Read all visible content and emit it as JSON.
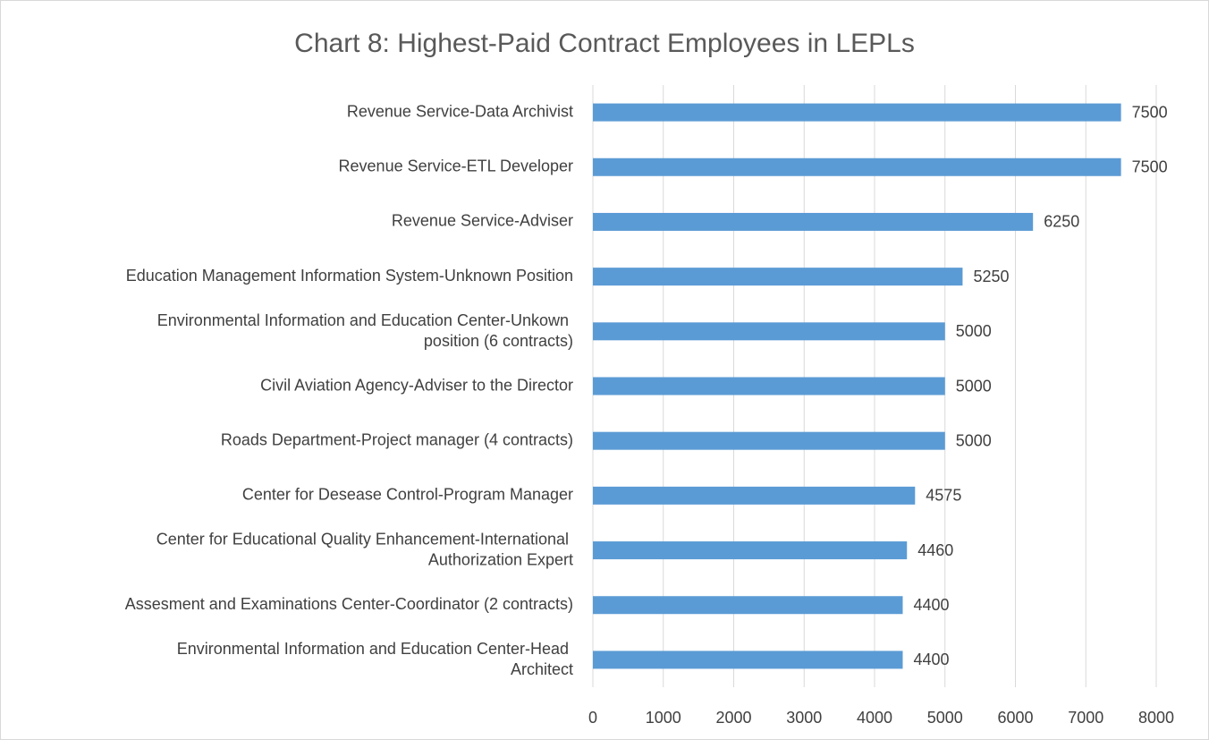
{
  "chart_data": {
    "type": "barh",
    "title": "Chart 8: Highest-Paid Contract Employees in LEPLs",
    "categories": [
      "Revenue Service-Data Archivist",
      "Revenue Service-ETL Developer",
      "Revenue Service-Adviser",
      "Education Management Information System-Unknown Position",
      "Environmental Information and Education Center-Unkown\nposition (6 contracts)",
      "Civil Aviation Agency-Adviser to the Director",
      "Roads Department-Project manager (4 contracts)",
      "Center for Desease Control-Program Manager",
      "Center for Educational Quality Enhancement-International\nAuthorization Expert",
      "Assesment and Examinations Center-Coordinator (2 contracts)",
      "Environmental Information and Education Center-Head\nArchitect"
    ],
    "values": [
      7500,
      7500,
      6250,
      5250,
      5000,
      5000,
      5000,
      4575,
      4460,
      4400,
      4400
    ],
    "color": "#5b9bd5",
    "xlim": [
      0,
      8000
    ],
    "xticks": [
      0,
      1000,
      2000,
      3000,
      4000,
      5000,
      6000,
      7000,
      8000
    ],
    "grid": true
  }
}
